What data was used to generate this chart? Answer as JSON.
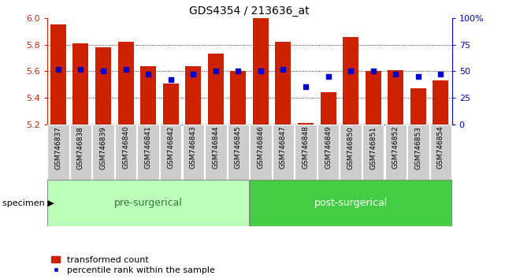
{
  "title": "GDS4354 / 213636_at",
  "samples": [
    "GSM746837",
    "GSM746838",
    "GSM746839",
    "GSM746840",
    "GSM746841",
    "GSM746842",
    "GSM746843",
    "GSM746844",
    "GSM746845",
    "GSM746846",
    "GSM746847",
    "GSM746848",
    "GSM746849",
    "GSM746850",
    "GSM746851",
    "GSM746852",
    "GSM746853",
    "GSM746854"
  ],
  "bar_heights": [
    5.95,
    5.81,
    5.78,
    5.82,
    5.64,
    5.505,
    5.64,
    5.73,
    5.6,
    5.998,
    5.82,
    5.21,
    5.44,
    5.86,
    5.6,
    5.61,
    5.47,
    5.53
  ],
  "percentile_values": [
    52,
    52,
    50,
    52,
    47,
    42,
    47,
    50,
    50,
    50,
    52,
    35,
    45,
    50,
    50,
    47,
    45,
    47
  ],
  "ymin": 5.2,
  "ymax": 6.0,
  "bar_color": "#cc2200",
  "dot_color": "#0000cc",
  "pre_surgical_count": 9,
  "pre_surgical_label": "pre-surgerical",
  "post_surgical_label": "post-surgerical",
  "pre_surgical_color": "#bbffbb",
  "post_surgical_color": "#44cc44",
  "group_label_pre_color": "#337733",
  "group_label_post_color": "#003300",
  "specimen_label": "specimen",
  "legend_bar_label": "transformed count",
  "legend_dot_label": "percentile rank within the sample",
  "right_axis_color": "#0000cc",
  "tick_label_color_left": "#cc2200",
  "tick_label_color_right": "#0000cc",
  "grid_color": "#000000",
  "bar_bottom": 5.2,
  "bar_width": 0.7
}
